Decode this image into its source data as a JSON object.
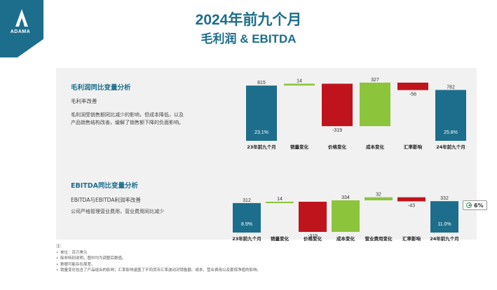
{
  "logo": {
    "text": "ADAMA"
  },
  "header": {
    "title": "2024年前九个月",
    "subtitle": "毛利润 & EBITDA"
  },
  "colors": {
    "brand": "#1c6e8c",
    "positive": "#8cc43c",
    "negative": "#c0141c"
  },
  "section1": {
    "title": "毛利润同比变量分析",
    "subtitle": "毛利率改善",
    "body_lines": [
      "毛利润受销售额同比减少的影响，但成本降低，以及",
      "产品销售结构改善，缓解了销售额下降的负面影响。"
    ]
  },
  "section2": {
    "title": "EBITDA同比变量分析",
    "subtitle": "EBITDA与EBITDA利润率改善",
    "body": "公司严格管理营业费用，营业费用同比减少"
  },
  "badge": {
    "text": "6%"
  },
  "notes": {
    "label": "注：",
    "items": [
      "单位：百万美元",
      "除非特别说明，图中均为调整后数值。",
      "数据可能存在尾差。",
      "销量变化包含了产品组合的影响；汇率影响涵盖了不同货币汇率波动对销售额、成本、营业费用以及套保净值的影响。"
    ]
  },
  "chart_data": [
    {
      "type": "bar",
      "subtype": "waterfall",
      "categories": [
        "23年前九个月",
        "销量变化",
        "价格变化",
        "成本变化",
        "汇率影响",
        "24年前九个月"
      ],
      "values": [
        815,
        14,
        -319,
        327,
        -56,
        782
      ],
      "kinds": [
        "total",
        "delta",
        "delta",
        "delta",
        "delta",
        "total"
      ],
      "value_labels": [
        "815",
        "14",
        "-319",
        "327",
        "-56",
        "782"
      ],
      "inner_labels": [
        "23.1%",
        "",
        "",
        "",
        "",
        "25.8%"
      ]
    },
    {
      "type": "bar",
      "subtype": "waterfall",
      "categories": [
        "23年前九个月",
        "销量变化",
        "价格变化",
        "成本变化",
        "营业费用变化",
        "汇率影响",
        "24年前九个月"
      ],
      "values": [
        312,
        14,
        -319,
        334,
        32,
        -43,
        332
      ],
      "kinds": [
        "total",
        "delta",
        "delta",
        "delta",
        "delta",
        "delta",
        "total"
      ],
      "value_labels": [
        "312",
        "14",
        "-319",
        "334",
        "32",
        "-43",
        "332"
      ],
      "inner_labels": [
        "8.9%",
        "",
        "",
        "",
        "",
        "",
        "11.0%"
      ]
    }
  ]
}
